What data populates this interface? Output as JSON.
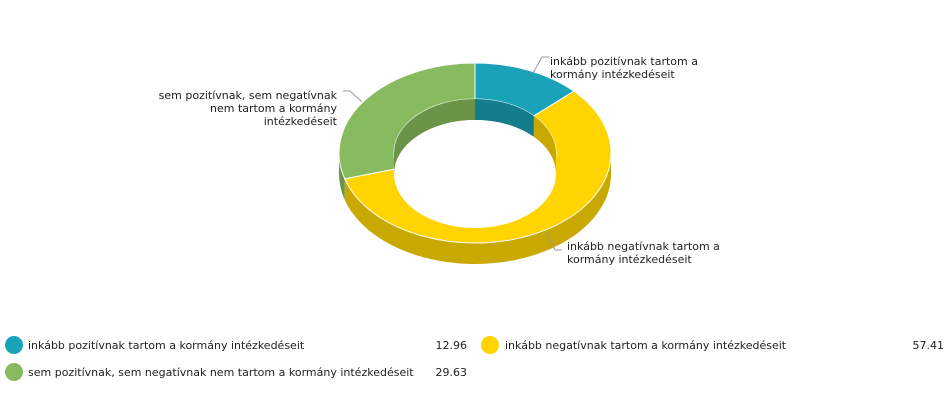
{
  "chart_data": {
    "type": "pie",
    "variant": "3d-donut",
    "slices": [
      {
        "label": "inkább pozitívnak tartom a kormány intézkedéseit",
        "value": 12.96,
        "color": "#1aa3b8",
        "shade": "#137d8e",
        "callout": [
          "inkább pozitívnak tartom a",
          "kormány intézkedéseit"
        ]
      },
      {
        "label": "inkább negatívnak tartom a kormány intézkedéseit",
        "value": 57.41,
        "color": "#ffd400",
        "shade": "#c9a900",
        "callout": [
          "inkább negatívnak tartom a",
          "kormány intézkedéseit"
        ]
      },
      {
        "label": "sem pozitívnak, sem negatívnak nem tartom a kormány intézkedéseit",
        "value": 29.63,
        "color": "#88bb60",
        "shade": "#6a9448",
        "callout": [
          "sem pozitívnak, sem negatívnak",
          "nem tartom a kormány",
          "intézkedéseit"
        ]
      }
    ],
    "legend_position": "bottom"
  }
}
